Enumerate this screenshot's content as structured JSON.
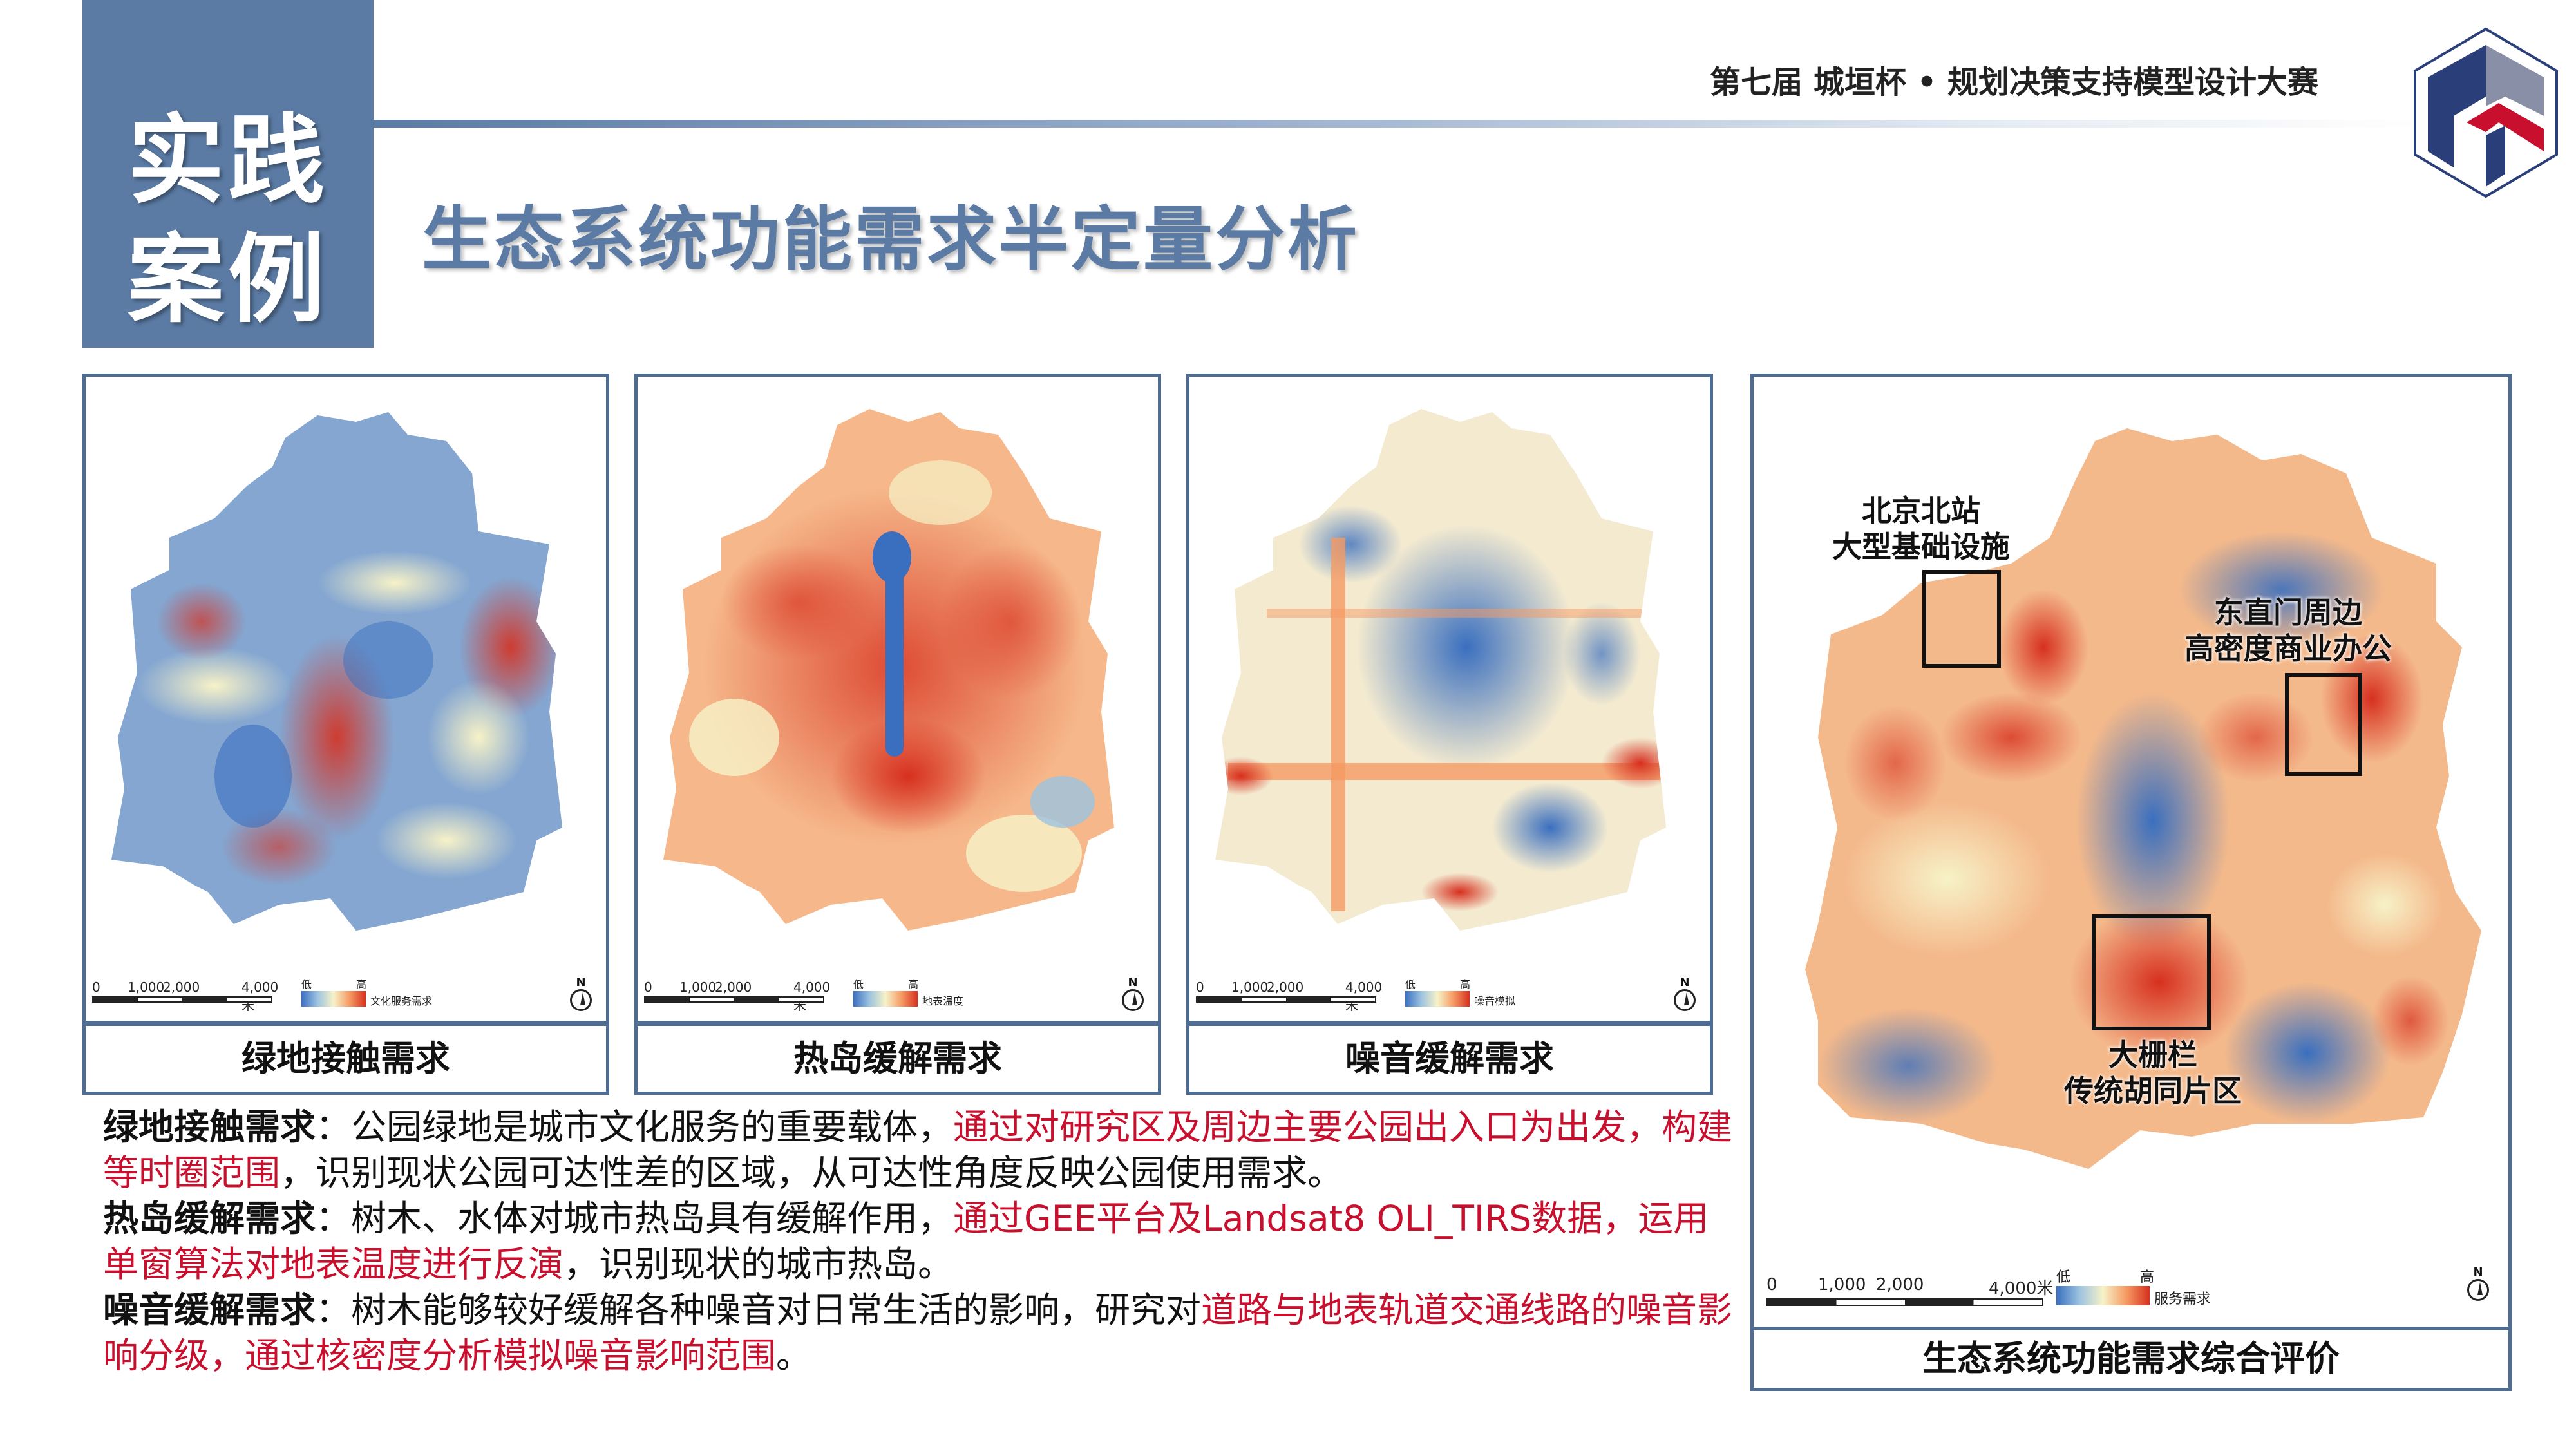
{
  "header": {
    "side_label_line1": "实践",
    "side_label_line2": "案例",
    "competition": "第七届 城垣杯 • 规划决策支持模型设计大赛",
    "title": "生态系统功能需求半定量分析",
    "logo_icon": "competition-logo-icon"
  },
  "small_maps": [
    {
      "caption": "绿地接触需求",
      "scale_labels": [
        "0",
        "1,000",
        "2,000",
        "4,000米"
      ],
      "legend_low": "低",
      "legend_high": "高",
      "legend_name": "文化服务需求",
      "north": "N"
    },
    {
      "caption": "热岛缓解需求",
      "scale_labels": [
        "0",
        "1,000",
        "2,000",
        "4,000米"
      ],
      "legend_low": "低",
      "legend_high": "高",
      "legend_name": "地表温度",
      "north": "N"
    },
    {
      "caption": "噪音缓解需求",
      "scale_labels": [
        "0",
        "1,000",
        "2,000",
        "4,000米"
      ],
      "legend_low": "低",
      "legend_high": "高",
      "legend_name": "噪音模拟",
      "north": "N"
    }
  ],
  "big_map": {
    "caption": "生态系统功能需求综合评价",
    "scale_labels": [
      "0",
      "1,000",
      "2,000",
      "4,000米"
    ],
    "legend_low": "低",
    "legend_high": "高",
    "legend_name": "服务需求",
    "north": "N",
    "annotations": [
      {
        "line1": "北京北站",
        "line2": "大型基础设施"
      },
      {
        "line1": "东直门周边",
        "line2": "高密度商业办公"
      },
      {
        "line1": "大栅栏",
        "line2": "传统胡同片区"
      }
    ]
  },
  "description": {
    "p1_label": "绿地接触需求",
    "p1_colon": "：",
    "p1_text_a": "公园绿地是城市文化服务的重要载体，",
    "p1_red": "通过对研究区及周边主要公园出入口为出发，构建等时圈范围",
    "p1_text_b": "，识别现状公园可达性差的区域，从可达性角度反映公园使用需求。",
    "p2_label": "热岛缓解需求",
    "p2_colon": "：",
    "p2_text_a": "树木、水体对城市热岛具有缓解作用，",
    "p2_red": "通过GEE平台及Landsat8 OLI_TIRS数据，运用单窗算法对地表温度进行反演",
    "p2_text_b": "，识别现状的城市热岛。",
    "p3_label": "噪音缓解需求",
    "p3_colon": "：",
    "p3_text_a": "树木能够较好缓解各种噪音对日常生活的影响，研究对",
    "p3_red": "道路与地表轨道交通线路的噪音影响分级，通过核密度分析模拟噪音影响范围",
    "p3_text_b": "。"
  },
  "colors": {
    "accent": "#5b7ba4",
    "frame": "#4f6d93",
    "highlight_red": "#c8102e",
    "ramp_low": "#3a6fbf",
    "ramp_mid": "#f7f2c8",
    "ramp_high": "#d7301f"
  }
}
